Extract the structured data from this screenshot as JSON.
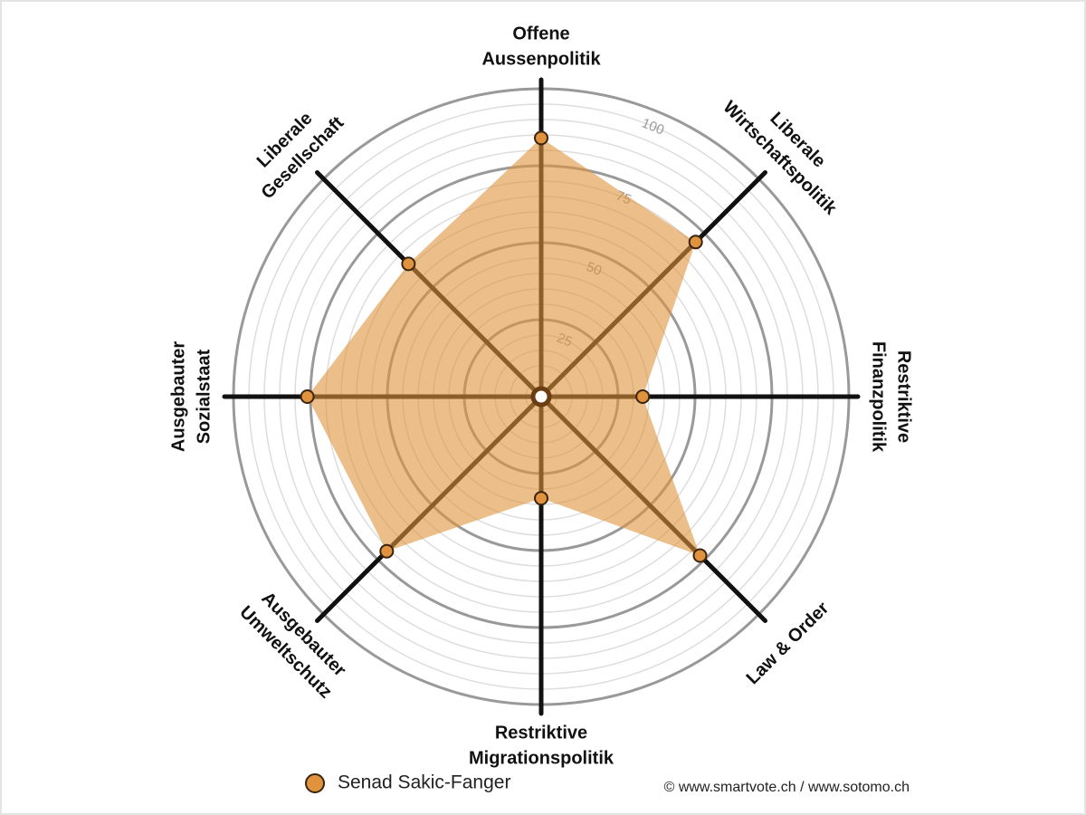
{
  "chart_data": {
    "type": "radar",
    "categories": [
      [
        "Offene",
        "Aussenpolitik"
      ],
      [
        "Liberale",
        "Wirtschaftspolitik"
      ],
      [
        "Restriktive",
        "Finanzpolitik"
      ],
      [
        "Law & Order"
      ],
      [
        "Restriktive",
        "Migrationspolitik"
      ],
      [
        "Ausgebauter",
        "Umweltschutz"
      ],
      [
        "Ausgebauter",
        "Sozialstaat"
      ],
      [
        "Liberale",
        "Gesellschaft"
      ]
    ],
    "series": [
      {
        "name": "Senad Sakic-Fanger",
        "color": "#e0923c",
        "values": [
          84,
          71,
          33,
          73,
          33,
          71,
          76,
          61
        ]
      }
    ],
    "rlim": [
      0,
      100
    ],
    "rticks": [
      25,
      50,
      75,
      100
    ],
    "minor_grid_step": 5,
    "source": "© www.smartvote.ch / www.sotomo.ch"
  }
}
